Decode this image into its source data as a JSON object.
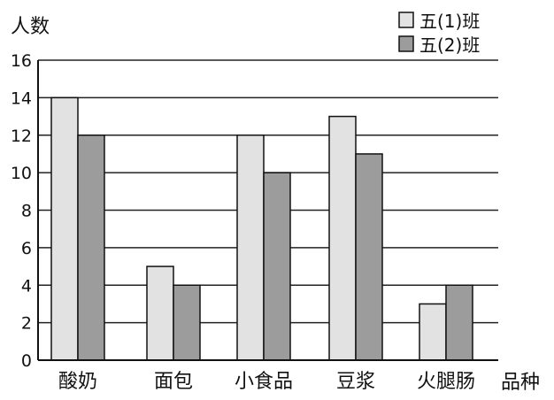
{
  "chart_data": {
    "type": "bar",
    "ylabel": "人数",
    "xlabel": "品种",
    "categories": [
      "酸奶",
      "面包",
      "小食品",
      "豆浆",
      "火腿肠"
    ],
    "series": [
      {
        "name": "五(1)班",
        "values": [
          14,
          5,
          12,
          13,
          3
        ],
        "color": "#e2e2e2"
      },
      {
        "name": "五(2)班",
        "values": [
          12,
          4,
          10,
          11,
          4
        ],
        "color": "#9c9c9c"
      }
    ],
    "ylim": [
      0,
      16
    ],
    "yticks": [
      "0",
      "2",
      "4",
      "6",
      "8",
      "10",
      "12",
      "14",
      "16"
    ],
    "grid": true,
    "legend": "top-right"
  }
}
